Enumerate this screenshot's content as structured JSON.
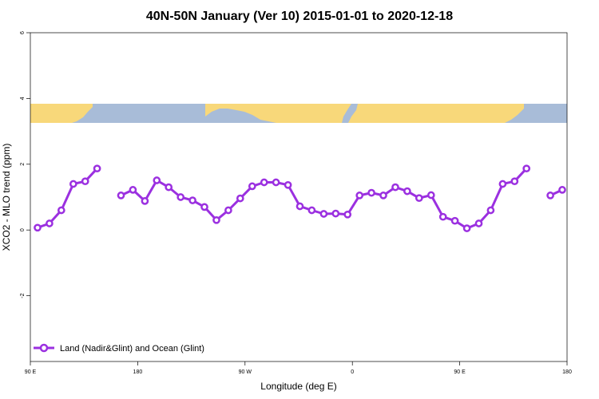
{
  "chart_data": {
    "type": "line",
    "title": "40N-50N January (Ver 10)   2015-01-01 to 2020-12-18",
    "xlabel": "Longitude (deg E)",
    "ylabel": "XCO2 - MLO trend (ppm)",
    "xlim": [
      90,
      540
    ],
    "ylim": [
      -4,
      6
    ],
    "x_ticks": [
      {
        "value": 90,
        "label": "90 E"
      },
      {
        "value": 180,
        "label": "180"
      },
      {
        "value": 270,
        "label": "90 W"
      },
      {
        "value": 360,
        "label": "0"
      },
      {
        "value": 450,
        "label": "90 E"
      },
      {
        "value": 540,
        "label": "180"
      }
    ],
    "y_ticks": [
      {
        "value": -2,
        "label": "-2"
      },
      {
        "value": 0,
        "label": "0"
      },
      {
        "value": 2,
        "label": "2"
      },
      {
        "value": 4,
        "label": "4"
      },
      {
        "value": 6,
        "label": "6"
      }
    ],
    "grid": false,
    "legend_position": "bottom-left",
    "map_strip": {
      "y_range": [
        3.3,
        3.85
      ],
      "land_color": "#f8d87a",
      "ocean_color": "#a8bcd8"
    },
    "series": [
      {
        "name": "Land (Nadir&Glint) and Ocean (Glint)",
        "color": "#9b30e0",
        "segments": [
          [
            [
              96,
              0.07
            ],
            [
              106,
              0.2
            ],
            [
              116,
              0.6
            ],
            [
              126,
              1.4
            ],
            [
              136,
              1.48
            ],
            [
              146,
              1.87
            ]
          ],
          [
            [
              166,
              1.05
            ],
            [
              176,
              1.22
            ],
            [
              186,
              0.88
            ],
            [
              196,
              1.51
            ],
            [
              206,
              1.3
            ],
            [
              216,
              1.0
            ],
            [
              226,
              0.9
            ],
            [
              236,
              0.7
            ],
            [
              246,
              0.3
            ],
            [
              256,
              0.6
            ],
            [
              266,
              0.96
            ],
            [
              276,
              1.33
            ],
            [
              286,
              1.45
            ],
            [
              296,
              1.45
            ],
            [
              306,
              1.37
            ],
            [
              316,
              0.72
            ],
            [
              326,
              0.6
            ],
            [
              336,
              0.49
            ],
            [
              346,
              0.5
            ],
            [
              356,
              0.47
            ],
            [
              366,
              1.05
            ],
            [
              376,
              1.13
            ],
            [
              386,
              1.05
            ],
            [
              396,
              1.3
            ],
            [
              406,
              1.18
            ],
            [
              416,
              0.97
            ],
            [
              426,
              1.06
            ],
            [
              436,
              0.4
            ],
            [
              446,
              0.28
            ],
            [
              456,
              0.05
            ],
            [
              466,
              0.2
            ],
            [
              476,
              0.6
            ],
            [
              486,
              1.4
            ],
            [
              496,
              1.48
            ],
            [
              506,
              1.87
            ]
          ],
          [
            [
              526,
              1.05
            ],
            [
              536,
              1.22
            ]
          ]
        ]
      }
    ]
  }
}
